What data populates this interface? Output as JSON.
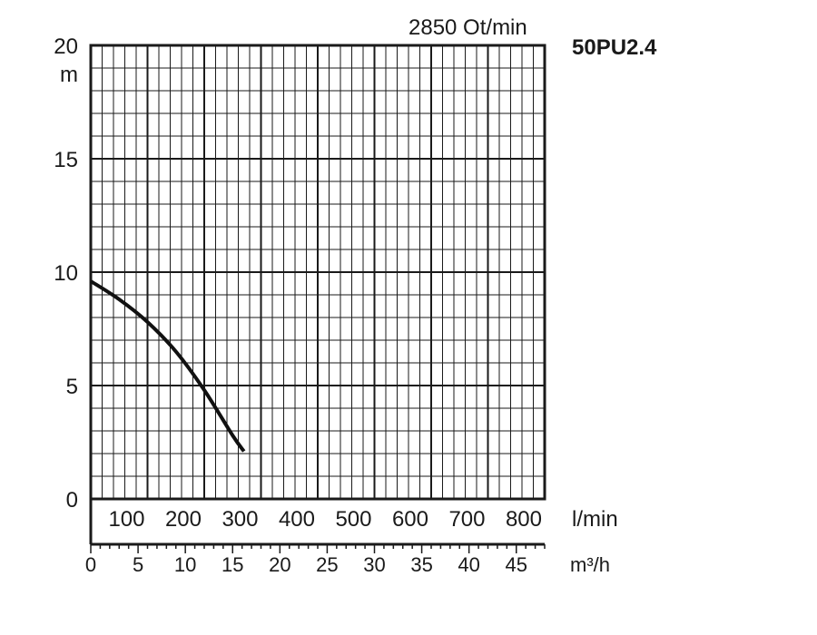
{
  "chart_data": {
    "type": "line",
    "title": "50PU2.4",
    "speed_label": "2850 Ot/min",
    "ylabel": "m",
    "xlabel": "l/min",
    "x2label": "m³/h",
    "ylim": [
      0,
      20
    ],
    "xlim": [
      0,
      800
    ],
    "grid": true,
    "y_ticks": [
      "0",
      "5",
      "10",
      "15",
      "20"
    ],
    "x_ticks": [
      "100",
      "200",
      "300",
      "400",
      "500",
      "600",
      "700",
      "800"
    ],
    "x2_ticks": [
      "0",
      "5",
      "10",
      "15",
      "20",
      "25",
      "30",
      "35",
      "40",
      "45"
    ],
    "series": [
      {
        "x": [
          0,
          50,
          100,
          150,
          200,
          250,
          270
        ],
        "y": [
          9.6,
          8.8,
          7.8,
          6.5,
          4.8,
          2.8,
          2.1
        ]
      }
    ]
  }
}
